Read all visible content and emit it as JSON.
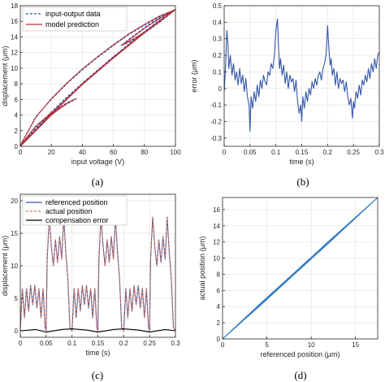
{
  "colors": {
    "blue": "#3355aa",
    "dark_red": "#b0303a",
    "light_red": "#e07050",
    "black": "#000000",
    "steel_blue": "#2f7bbf",
    "grid": "#e3e3e3",
    "axes": "#262626"
  },
  "chart_data": [
    {
      "panel_label": "(a)",
      "type": "line",
      "xlabel": "input voltage (V)",
      "ylabel": "displacement (μm)",
      "xlim": [
        0,
        100
      ],
      "ylim": [
        0,
        18
      ],
      "xticks": [
        0,
        20,
        40,
        60,
        80,
        100
      ],
      "yticks": [
        0,
        2,
        4,
        6,
        8,
        10,
        12,
        14,
        16,
        18
      ],
      "grid": true,
      "legend_position": "top-left",
      "series": [
        {
          "name": "input-output data",
          "style": "dashed",
          "color": "#3355aa",
          "loops": [
            {
              "x": [
                0,
                10,
                20,
                30,
                40,
                50,
                60,
                70,
                80,
                90,
                100,
                90,
                80,
                70,
                60,
                50,
                40,
                30,
                20,
                10,
                0
              ],
              "y": [
                0,
                2.2,
                4.3,
                6.2,
                8.0,
                9.7,
                11.4,
                13.0,
                14.6,
                16.1,
                17.5,
                16.6,
                15.5,
                14.3,
                12.9,
                11.4,
                9.8,
                8.0,
                6.0,
                3.8,
                0.1
              ]
            },
            {
              "x": [
                0,
                10,
                20,
                30,
                40,
                50,
                60,
                70,
                80,
                90,
                100,
                90,
                80,
                70,
                65,
                70,
                80,
                90,
                100
              ],
              "y": [
                0.1,
                2.3,
                4.4,
                6.3,
                8.1,
                9.8,
                11.5,
                13.1,
                14.7,
                16.2,
                17.5,
                16.5,
                15.2,
                13.7,
                12.9,
                13.3,
                14.5,
                15.9,
                17.5
              ]
            },
            {
              "x": [
                0,
                10,
                20,
                30,
                36,
                30,
                20,
                10,
                0
              ],
              "y": [
                0,
                2.1,
                4.1,
                5.6,
                6.1,
                5.4,
                4.2,
                2.5,
                0.1
              ]
            }
          ]
        },
        {
          "name": "model prediction",
          "style": "solid",
          "color": "#b0303a",
          "loops": [
            {
              "x": [
                0,
                10,
                20,
                30,
                40,
                50,
                60,
                70,
                80,
                90,
                100,
                90,
                80,
                70,
                60,
                50,
                40,
                30,
                20,
                10,
                0
              ],
              "y": [
                0,
                2.0,
                4.1,
                6.0,
                7.9,
                9.6,
                11.3,
                12.9,
                14.5,
                16.0,
                17.5,
                16.7,
                15.6,
                14.4,
                13.0,
                11.5,
                9.9,
                8.1,
                6.1,
                3.7,
                0.1
              ]
            },
            {
              "x": [
                0,
                10,
                20,
                30,
                40,
                50,
                60,
                70,
                80,
                90,
                100,
                90,
                80,
                70,
                65,
                70,
                80,
                90,
                100
              ],
              "y": [
                0.1,
                2.1,
                4.2,
                6.1,
                8.0,
                9.7,
                11.4,
                13.0,
                14.6,
                16.1,
                17.5,
                16.4,
                15.1,
                13.6,
                12.9,
                13.4,
                14.6,
                16.0,
                17.5
              ]
            },
            {
              "x": [
                0,
                10,
                20,
                30,
                36,
                30,
                20,
                10,
                0
              ],
              "y": [
                0,
                2.0,
                4.0,
                5.5,
                6.1,
                5.5,
                4.3,
                2.6,
                0.1
              ]
            }
          ]
        }
      ]
    },
    {
      "panel_label": "(b)",
      "type": "line",
      "xlabel": "time (s)",
      "ylabel": "error (μm)",
      "xlim": [
        0,
        0.3
      ],
      "ylim": [
        -0.35,
        0.5
      ],
      "xticks": [
        0,
        0.05,
        0.1,
        0.15,
        0.2,
        0.25,
        0.3
      ],
      "yticks": [
        -0.3,
        -0.2,
        -0.1,
        0,
        0.1,
        0.2,
        0.3,
        0.4,
        0.5
      ],
      "grid": true,
      "series": [
        {
          "color": "#3355aa",
          "x": [
            0,
            0.003,
            0.005,
            0.007,
            0.009,
            0.012,
            0.015,
            0.018,
            0.021,
            0.024,
            0.027,
            0.03,
            0.033,
            0.036,
            0.039,
            0.042,
            0.045,
            0.048,
            0.05,
            0.052,
            0.055,
            0.058,
            0.061,
            0.064,
            0.067,
            0.07,
            0.073,
            0.076,
            0.079,
            0.082,
            0.085,
            0.088,
            0.091,
            0.094,
            0.097,
            0.1,
            0.103,
            0.105,
            0.107,
            0.109,
            0.112,
            0.115,
            0.118,
            0.121,
            0.124,
            0.127,
            0.13,
            0.133,
            0.136,
            0.139,
            0.142,
            0.145,
            0.148,
            0.15,
            0.152,
            0.155,
            0.158,
            0.161,
            0.164,
            0.167,
            0.17,
            0.173,
            0.176,
            0.179,
            0.182,
            0.185,
            0.188,
            0.191,
            0.194,
            0.197,
            0.2,
            0.203,
            0.205,
            0.207,
            0.209,
            0.212,
            0.215,
            0.218,
            0.221,
            0.224,
            0.227,
            0.23,
            0.233,
            0.236,
            0.239,
            0.242,
            0.245,
            0.248,
            0.25,
            0.252,
            0.255,
            0.258,
            0.261,
            0.264,
            0.267,
            0.27,
            0.273,
            0.276,
            0.279,
            0.282,
            0.285,
            0.288,
            0.291,
            0.294,
            0.297,
            0.3
          ],
          "y": [
            -0.02,
            0.15,
            0.35,
            0.28,
            0.12,
            0.2,
            0.08,
            0.15,
            0.05,
            0.1,
            0.02,
            0.12,
            0.03,
            0.08,
            -0.02,
            0.06,
            -0.05,
            -0.1,
            -0.26,
            -0.05,
            -0.12,
            -0.02,
            -0.08,
            0.02,
            -0.05,
            0.05,
            0.0,
            0.08,
            0.04,
            0.02,
            0.1,
            0.08,
            0.15,
            0.12,
            0.2,
            0.35,
            0.42,
            0.25,
            0.12,
            0.18,
            0.08,
            0.14,
            0.03,
            0.1,
            0.0,
            0.08,
            0.04,
            0.06,
            -0.02,
            0.05,
            -0.08,
            -0.15,
            -0.1,
            -0.2,
            -0.05,
            -0.12,
            -0.02,
            -0.08,
            0.0,
            -0.04,
            0.04,
            0.0,
            0.06,
            0.02,
            0.08,
            0.1,
            0.05,
            0.12,
            0.15,
            0.2,
            0.38,
            0.22,
            0.14,
            0.18,
            0.08,
            0.12,
            0.02,
            0.1,
            0.0,
            0.06,
            0.03,
            0.05,
            -0.02,
            0.04,
            -0.05,
            -0.1,
            -0.06,
            -0.18,
            -0.08,
            -0.12,
            -0.02,
            -0.06,
            0.02,
            -0.04,
            0.05,
            0.02,
            0.08,
            0.04,
            0.12,
            0.06,
            0.15,
            0.1,
            0.18,
            0.12,
            0.2,
            0.22
          ]
        }
      ]
    },
    {
      "panel_label": "(c)",
      "type": "line",
      "xlabel": "time (s)",
      "ylabel": "displacement (μm)",
      "xlim": [
        0,
        0.3
      ],
      "ylim": [
        -1,
        21
      ],
      "xticks": [
        0,
        0.05,
        0.1,
        0.15,
        0.2,
        0.25,
        0.3
      ],
      "yticks": [
        0,
        5,
        10,
        15,
        20
      ],
      "grid": true,
      "legend_position": "top-left",
      "series": [
        {
          "name": "referenced position",
          "style": "solid",
          "color": "#3355aa",
          "x": [
            0,
            0.004,
            0.008,
            0.012,
            0.016,
            0.02,
            0.024,
            0.028,
            0.032,
            0.036,
            0.04,
            0.044,
            0.048,
            0.05,
            0.052,
            0.056,
            0.06,
            0.064,
            0.068,
            0.072,
            0.076,
            0.08,
            0.084,
            0.088,
            0.092,
            0.096,
            0.1,
            0.104,
            0.108,
            0.112,
            0.116,
            0.12,
            0.124,
            0.128,
            0.132,
            0.136,
            0.14,
            0.144,
            0.148,
            0.15,
            0.152,
            0.156,
            0.16,
            0.164,
            0.168,
            0.172,
            0.176,
            0.18,
            0.184,
            0.188,
            0.192,
            0.196,
            0.2,
            0.204,
            0.208,
            0.212,
            0.216,
            0.22,
            0.224,
            0.228,
            0.232,
            0.236,
            0.24,
            0.244,
            0.248,
            0.25,
            0.252,
            0.256,
            0.26,
            0.264,
            0.268,
            0.272,
            0.276,
            0.28,
            0.284,
            0.288,
            0.292,
            0.296,
            0.3
          ],
          "y": [
            0,
            6.5,
            2.0,
            6.5,
            3.0,
            7.0,
            4.0,
            7.0,
            3.5,
            6.5,
            2.0,
            6.5,
            0.5,
            0.0,
            11.0,
            17.5,
            13.0,
            10.0,
            14.0,
            10.5,
            14.5,
            11.0,
            17.5,
            12.0,
            8.0,
            0.5,
            0.0,
            6.5,
            2.0,
            6.5,
            3.0,
            7.0,
            4.0,
            7.0,
            3.5,
            6.5,
            2.0,
            6.5,
            0.5,
            0.0,
            11.0,
            17.5,
            13.0,
            10.0,
            14.0,
            10.5,
            14.5,
            11.0,
            17.5,
            12.0,
            8.0,
            0.5,
            0.0,
            6.5,
            2.0,
            6.5,
            3.0,
            7.0,
            4.0,
            7.0,
            3.5,
            6.5,
            2.0,
            6.5,
            0.5,
            0.0,
            11.0,
            17.5,
            13.0,
            10.0,
            14.0,
            10.5,
            14.5,
            11.0,
            17.5,
            12.0,
            8.0,
            0.5,
            0.0
          ]
        },
        {
          "name": "actual position",
          "style": "dashed",
          "color": "#e07050"
        },
        {
          "name": "compensation error",
          "style": "solid",
          "color": "#000000",
          "x": [
            0,
            0.03,
            0.05,
            0.08,
            0.1,
            0.13,
            0.15,
            0.18,
            0.2,
            0.23,
            0.25,
            0.28,
            0.3
          ],
          "y": [
            0.0,
            0.2,
            -0.2,
            0.2,
            0.3,
            0.1,
            -0.2,
            0.2,
            0.3,
            0.1,
            -0.2,
            0.2,
            0.0
          ]
        }
      ]
    },
    {
      "panel_label": "(d)",
      "type": "line",
      "xlabel": "referenced position (μm)",
      "ylabel": "actual position (μm)",
      "xlim": [
        0,
        17.5
      ],
      "ylim": [
        0,
        17.5
      ],
      "xticks": [
        0,
        5,
        10,
        15
      ],
      "yticks": [
        0,
        2,
        4,
        6,
        8,
        10,
        12,
        14,
        16
      ],
      "grid": true,
      "series": [
        {
          "color": "#2f7bbf",
          "x": [
            0,
            4,
            8,
            12,
            17.5,
            12,
            8,
            4,
            0,
            6,
            12,
            17.5
          ],
          "y": [
            0,
            4.1,
            8.1,
            12.1,
            17.5,
            11.9,
            7.9,
            3.9,
            0,
            6.05,
            12.05,
            17.5
          ]
        }
      ]
    }
  ]
}
